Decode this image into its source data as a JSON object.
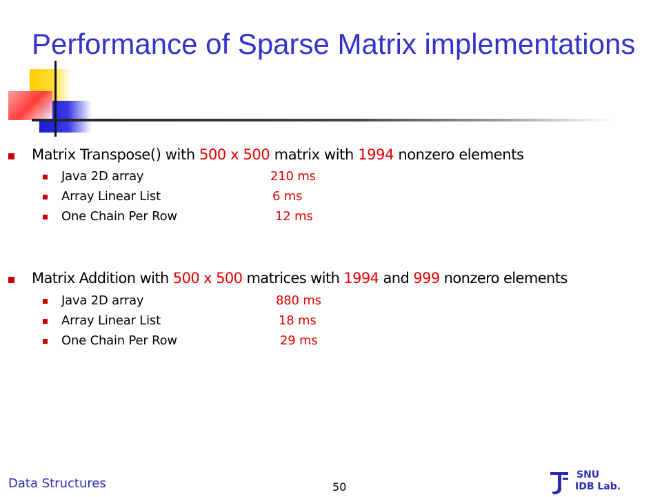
{
  "slide": {
    "title": "Performance of Sparse Matrix implementations",
    "section1": {
      "heading_parts": [
        "Matrix Transpose() with ",
        "500 x 500",
        " matrix with ",
        "1994",
        " nonzero elements"
      ],
      "items": [
        {
          "label": "Java  2D array",
          "time": "210 ms"
        },
        {
          "label": "Array Linear List",
          "time": "6 ms"
        },
        {
          "label": "One Chain Per Row",
          "time": "12 ms"
        }
      ]
    },
    "section2": {
      "heading_parts": [
        "Matrix Addition with ",
        "500 x 500",
        " matrices with ",
        "1994",
        " and ",
        "999",
        " nonzero elements"
      ],
      "items": [
        {
          "label": "Java 2D array",
          "time": "880 ms"
        },
        {
          "label": "Array Linear List",
          "time": "18 ms"
        },
        {
          "label": "One Chain Per Row",
          "time": "29 ms"
        }
      ]
    },
    "footer": {
      "course": "Data Structures",
      "page_number": "50",
      "logo_line1": "SNU",
      "logo_line2": "IDB Lab."
    },
    "colors": {
      "title": "#3333cc",
      "highlight": "#e00000",
      "bullet": "#cc0000",
      "footer_text": "#2b2bb8"
    }
  }
}
